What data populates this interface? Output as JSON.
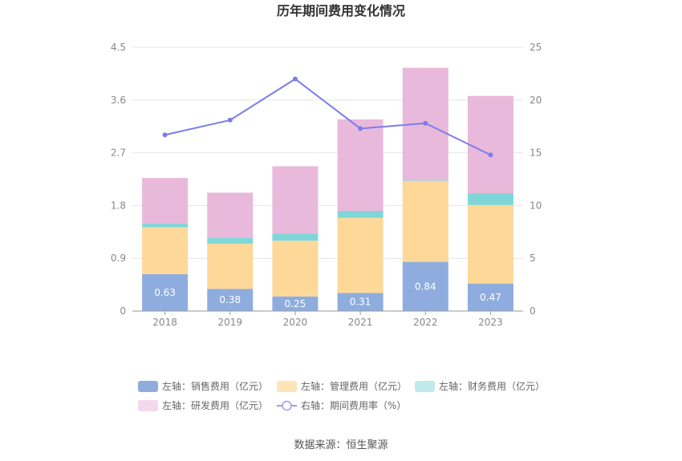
{
  "chart_data": {
    "type": "bar",
    "title": "历年期间费用变化情况",
    "categories": [
      "2018",
      "2019",
      "2020",
      "2021",
      "2022",
      "2023"
    ],
    "left_axis": {
      "ticks": [
        "0",
        "0.9",
        "1.8",
        "2.7",
        "3.6",
        "4.5"
      ],
      "range": [
        0,
        4.5
      ]
    },
    "right_axis": {
      "ticks": [
        "0",
        "5",
        "10",
        "15",
        "20",
        "25"
      ],
      "range": [
        0,
        25
      ]
    },
    "series": [
      {
        "name": "左轴：销售费用（亿元）",
        "kind": "bar",
        "axis": "left",
        "color": "#8eadde",
        "values": [
          0.63,
          0.38,
          0.25,
          0.31,
          0.84,
          0.47
        ],
        "labels": [
          "0.63",
          "0.38",
          "0.25",
          "0.31",
          "0.84",
          "0.47"
        ]
      },
      {
        "name": "左轴：管理费用（亿元）",
        "kind": "bar",
        "axis": "left",
        "color": "#fed899",
        "values": [
          0.8,
          0.77,
          0.95,
          1.28,
          1.38,
          1.34
        ]
      },
      {
        "name": "左轴：财务费用（亿元）",
        "kind": "bar",
        "axis": "left",
        "color": "#7fd6d8",
        "values": [
          0.06,
          0.1,
          0.12,
          0.12,
          0.01,
          0.2
        ]
      },
      {
        "name": "左轴：研发费用（亿元）",
        "kind": "bar",
        "axis": "left",
        "color": "#e8b9da",
        "values": [
          0.78,
          0.77,
          1.15,
          1.56,
          1.92,
          1.66
        ]
      },
      {
        "name": "右轴：期间费用率（%）",
        "kind": "line",
        "axis": "right",
        "color": "#7b7de8",
        "values": [
          16.7,
          18.1,
          22.0,
          17.3,
          17.8,
          14.8
        ]
      }
    ],
    "legend_colors": [
      "#8eadde",
      "#fee4b6",
      "#bfe9ea",
      "#f3d9ec",
      "#9b9ef0"
    ],
    "grid": true,
    "legend_position": "bottom"
  },
  "source": "数据来源：恒生聚源"
}
